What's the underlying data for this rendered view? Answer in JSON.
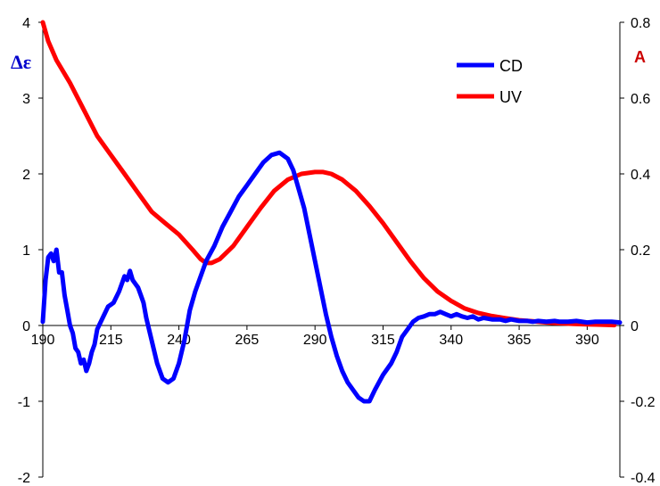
{
  "chart_data": {
    "type": "line",
    "title": "",
    "xlabel": "",
    "ylabel": "Δε",
    "y2label": "A",
    "xlim": [
      190,
      402
    ],
    "ylim": [
      -2,
      4
    ],
    "y2lim": [
      -0.4,
      0.8
    ],
    "x_ticks": [
      "190",
      "215",
      "240",
      "265",
      "290",
      "315",
      "340",
      "365",
      "390"
    ],
    "y_ticks": [
      "4",
      "3",
      "2",
      "1",
      "0",
      "-1",
      "-2"
    ],
    "y2_ticks": [
      "0.8",
      "0.6",
      "0.4",
      "0.2",
      "0",
      "-0.2",
      "-0.4"
    ],
    "grid": false,
    "legend_position": "top-right",
    "colors": {
      "cd": "#0000ff",
      "uv": "#ff0000",
      "ylabel": "#0000cc",
      "y2label": "#cc0000"
    },
    "series": [
      {
        "name": "CD",
        "axis": "left",
        "x": [
          190,
          191,
          192,
          193,
          194,
          195,
          196,
          197,
          198,
          199,
          200,
          201,
          202,
          203,
          204,
          205,
          206,
          207,
          208,
          209,
          210,
          212,
          214,
          216,
          218,
          220,
          221,
          222,
          223,
          224,
          225,
          226,
          227,
          228,
          230,
          232,
          234,
          236,
          238,
          240,
          242,
          244,
          246,
          248,
          250,
          253,
          256,
          259,
          262,
          265,
          268,
          271,
          274,
          277,
          280,
          282,
          284,
          286,
          288,
          290,
          292,
          294,
          296,
          298,
          300,
          302,
          304,
          306,
          308,
          310,
          312,
          315,
          318,
          320,
          322,
          324,
          326,
          328,
          330,
          332,
          334,
          336,
          338,
          340,
          342,
          344,
          346,
          348,
          350,
          352,
          355,
          358,
          360,
          362,
          365,
          368,
          370,
          372,
          375,
          378,
          380,
          383,
          386,
          390,
          393,
          396,
          399,
          402
        ],
        "y": [
          0.05,
          0.6,
          0.9,
          0.95,
          0.85,
          1.0,
          0.7,
          0.7,
          0.4,
          0.2,
          0.0,
          -0.1,
          -0.3,
          -0.35,
          -0.5,
          -0.45,
          -0.6,
          -0.5,
          -0.35,
          -0.25,
          -0.05,
          0.1,
          0.25,
          0.3,
          0.45,
          0.65,
          0.6,
          0.72,
          0.6,
          0.55,
          0.5,
          0.4,
          0.3,
          0.1,
          -0.2,
          -0.5,
          -0.7,
          -0.75,
          -0.7,
          -0.5,
          -0.2,
          0.2,
          0.45,
          0.65,
          0.85,
          1.05,
          1.3,
          1.5,
          1.7,
          1.85,
          2.0,
          2.15,
          2.25,
          2.28,
          2.2,
          2.05,
          1.8,
          1.55,
          1.2,
          0.85,
          0.5,
          0.15,
          -0.15,
          -0.4,
          -0.6,
          -0.75,
          -0.85,
          -0.95,
          -1.0,
          -1.0,
          -0.85,
          -0.65,
          -0.5,
          -0.35,
          -0.15,
          -0.05,
          0.05,
          0.1,
          0.12,
          0.15,
          0.15,
          0.18,
          0.15,
          0.12,
          0.15,
          0.12,
          0.1,
          0.12,
          0.08,
          0.1,
          0.08,
          0.08,
          0.06,
          0.08,
          0.06,
          0.06,
          0.05,
          0.06,
          0.05,
          0.06,
          0.05,
          0.05,
          0.06,
          0.04,
          0.05,
          0.05,
          0.05,
          0.04
        ]
      },
      {
        "name": "UV",
        "axis": "right",
        "x": [
          190,
          192,
          195,
          200,
          205,
          210,
          215,
          220,
          225,
          230,
          235,
          240,
          245,
          248,
          250,
          252,
          255,
          260,
          265,
          270,
          275,
          280,
          285,
          290,
          293,
          296,
          300,
          305,
          310,
          315,
          320,
          325,
          330,
          335,
          340,
          345,
          350,
          355,
          360,
          365,
          370,
          375,
          380,
          385,
          390,
          395,
          400
        ],
        "y": [
          0.8,
          0.75,
          0.7,
          0.64,
          0.57,
          0.5,
          0.45,
          0.4,
          0.35,
          0.3,
          0.27,
          0.24,
          0.2,
          0.175,
          0.165,
          0.165,
          0.175,
          0.21,
          0.26,
          0.31,
          0.355,
          0.385,
          0.4,
          0.405,
          0.405,
          0.4,
          0.385,
          0.355,
          0.315,
          0.27,
          0.22,
          0.17,
          0.125,
          0.09,
          0.065,
          0.045,
          0.033,
          0.025,
          0.019,
          0.014,
          0.011,
          0.008,
          0.006,
          0.004,
          0.003,
          0.002,
          0.001
        ]
      }
    ]
  }
}
